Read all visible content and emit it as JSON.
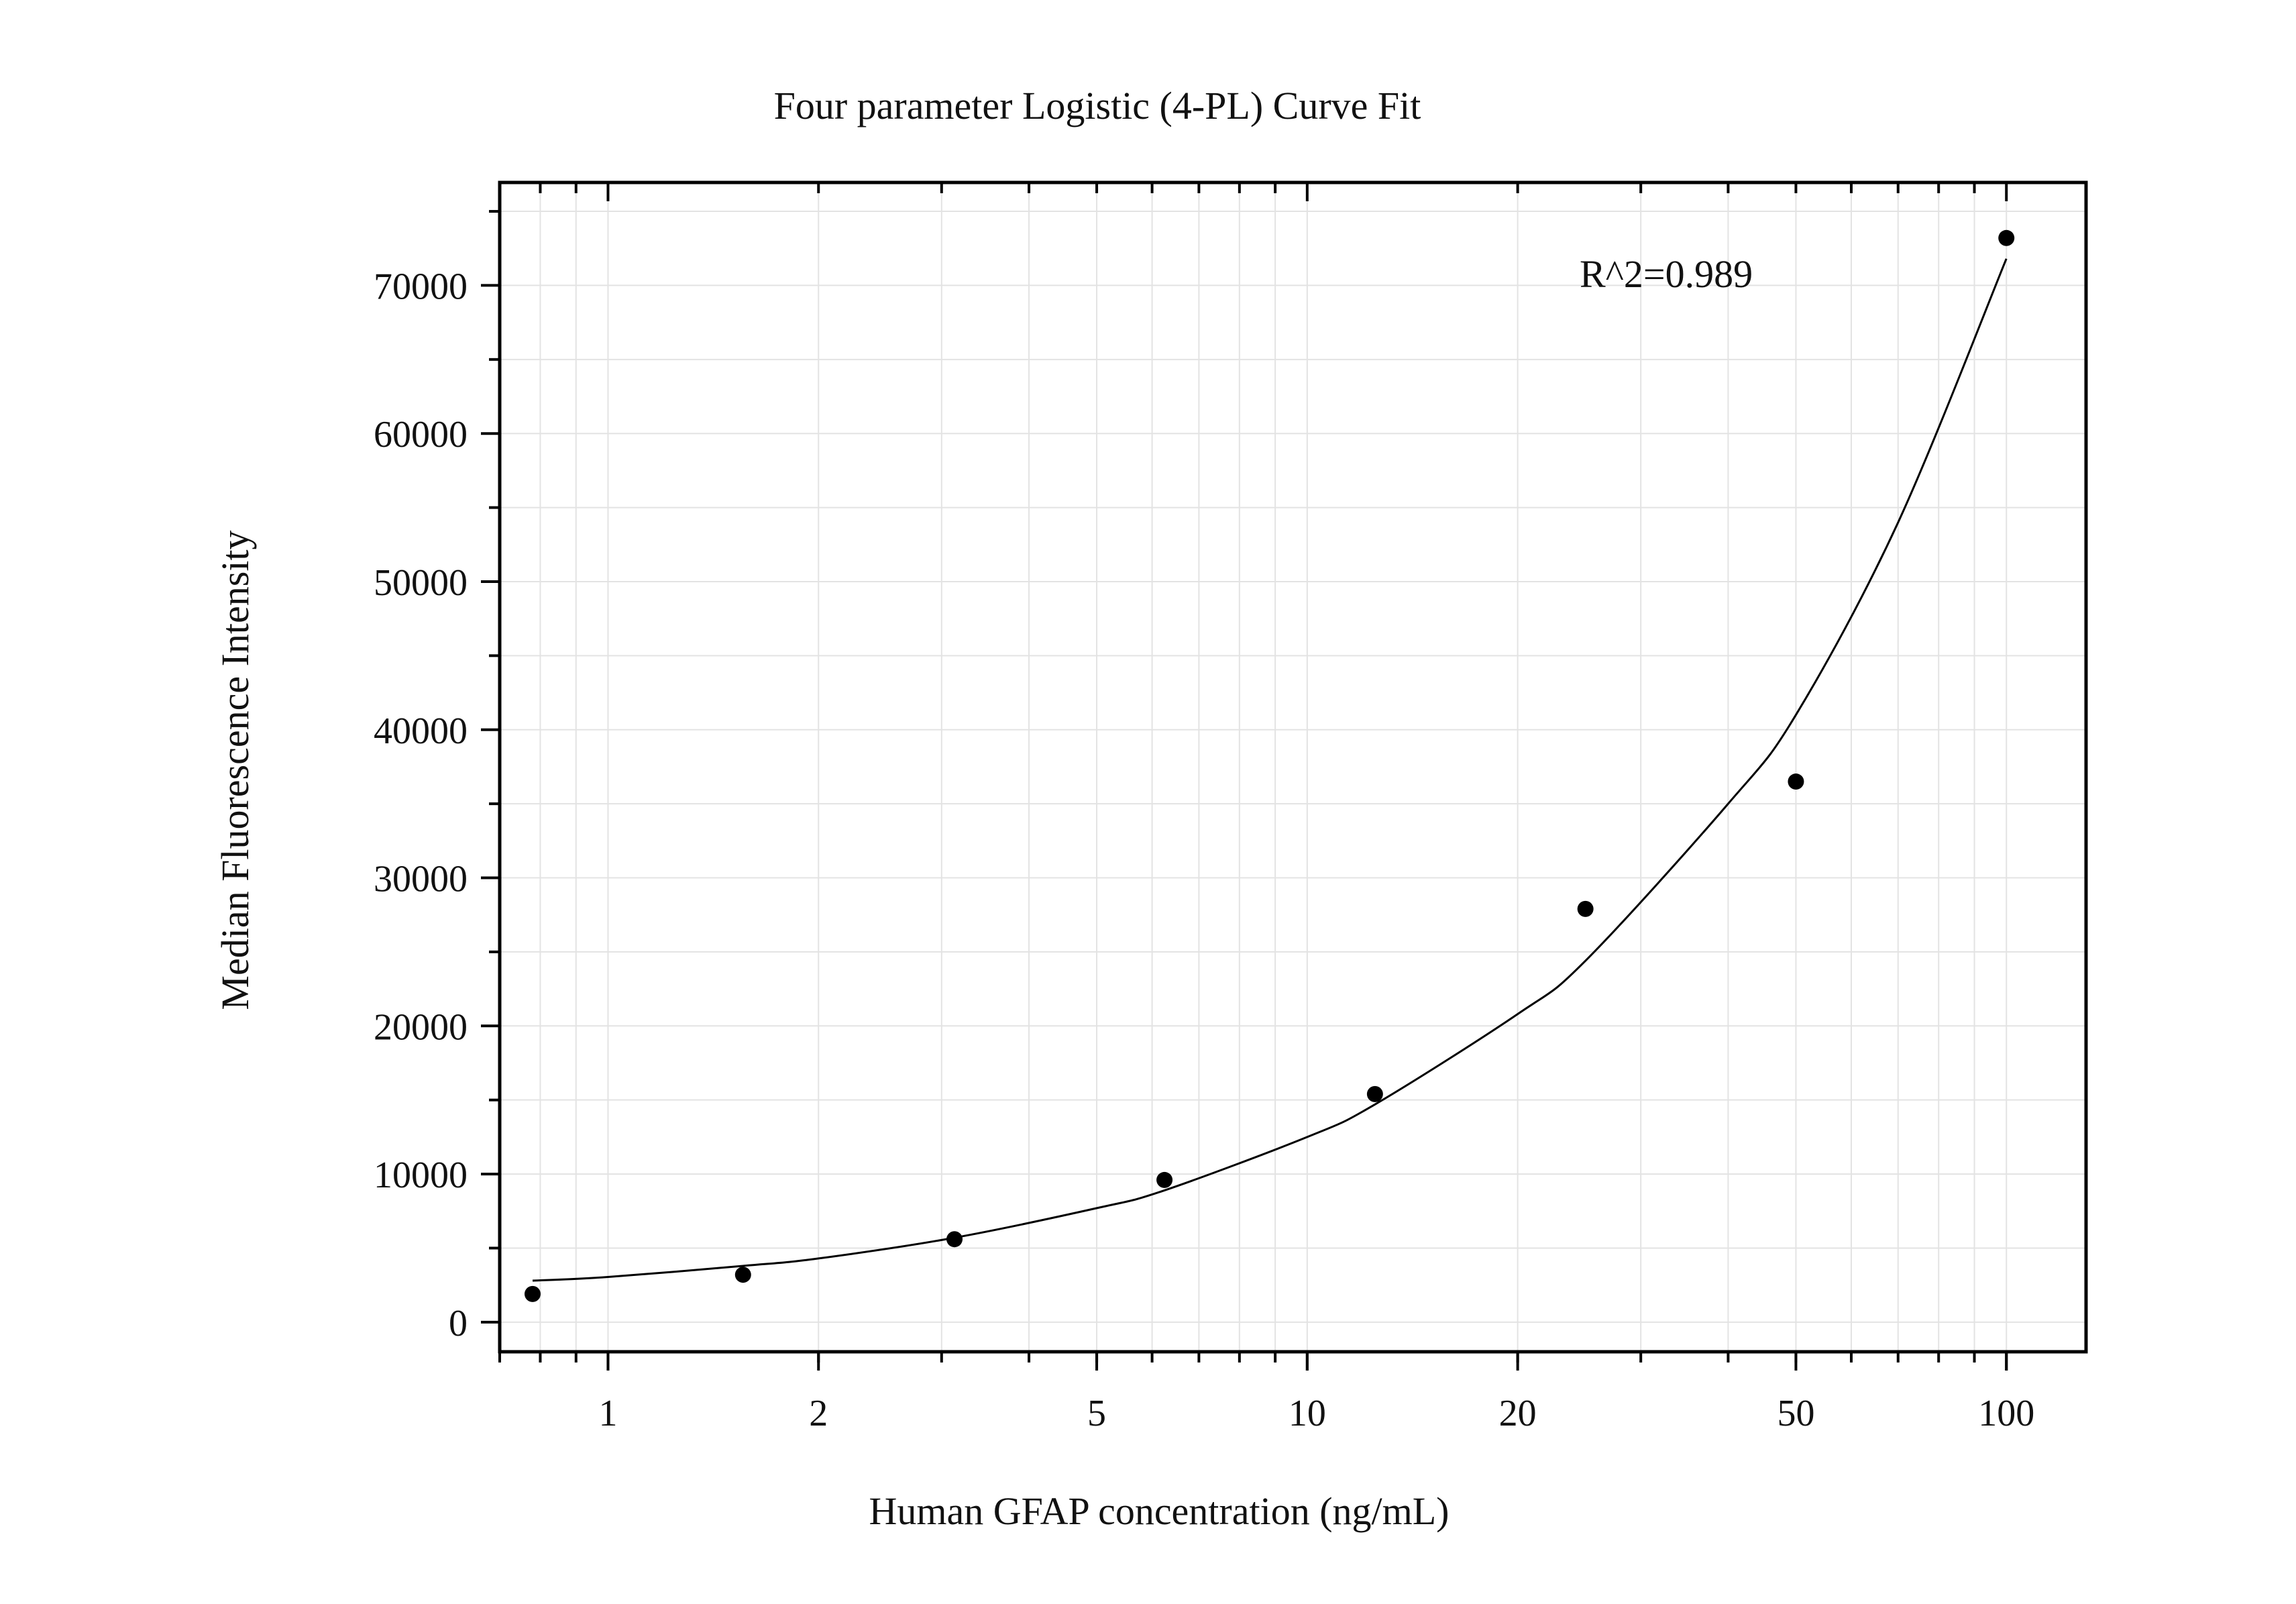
{
  "chart_data": {
    "type": "scatter",
    "title": "Four parameter Logistic (4-PL) Curve Fit",
    "xlabel": "Human GFAP concentration (ng/mL)",
    "ylabel": "Median Fluorescence Intensity",
    "annotation": "R^2=0.989",
    "x_scale": "log",
    "xlim": [
      0.7,
      130
    ],
    "ylim": [
      -2000,
      76950
    ],
    "x_ticks": [
      1,
      2,
      5,
      10,
      20,
      50,
      100
    ],
    "x_tick_labels": [
      "1",
      "2",
      "5",
      "10",
      "20",
      "50",
      "100"
    ],
    "y_ticks": [
      0,
      10000,
      20000,
      30000,
      40000,
      50000,
      60000,
      70000
    ],
    "y_tick_labels": [
      "0",
      "10000",
      "20000",
      "30000",
      "40000",
      "50000",
      "60000",
      "70000"
    ],
    "grid": true,
    "series": [
      {
        "type": "scatter",
        "x": [
          0.78,
          1.56,
          3.13,
          6.25,
          12.5,
          25,
          50,
          100
        ],
        "y": [
          1900,
          3200,
          5600,
          9600,
          15400,
          27900,
          36500,
          73200
        ]
      },
      {
        "type": "line",
        "x": [
          0.78,
          1,
          1.56,
          2,
          3.13,
          5,
          6.25,
          10,
          12.5,
          20,
          25,
          40,
          50,
          70,
          100
        ],
        "y": [
          2800,
          3050,
          3800,
          4300,
          5700,
          7700,
          8900,
          12500,
          14700,
          20800,
          24400,
          35000,
          41000,
          54000,
          71800
        ]
      }
    ],
    "colors": {
      "marker": "#000000",
      "line": "#000000",
      "grid": "#e3e3e3",
      "axis": "#000000"
    }
  }
}
